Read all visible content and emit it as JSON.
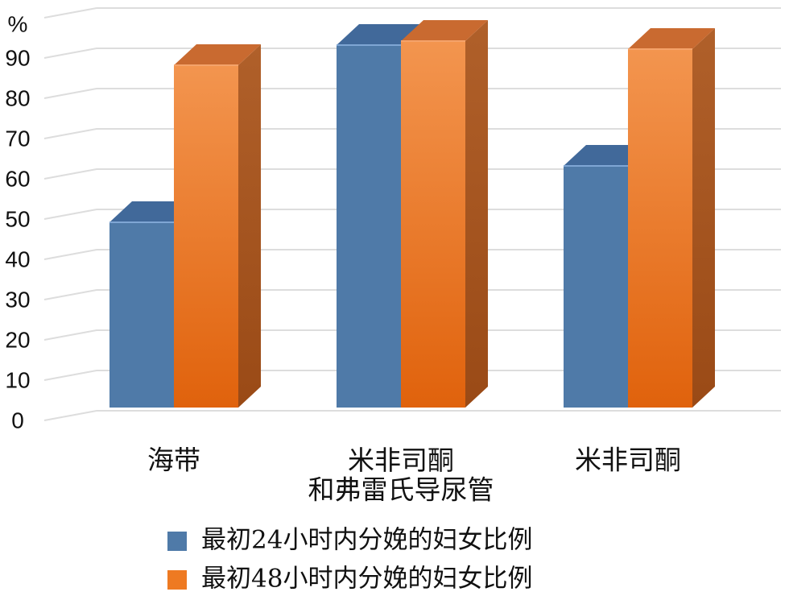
{
  "chart_data": {
    "type": "bar3d",
    "y_label": "%",
    "categories": [
      "海带",
      "米非司酮\n和弗雷氏导尿管",
      "米非司酮"
    ],
    "series": [
      {
        "name": "最初24小时内分娩的妇女比例",
        "color": "#4f7aa8",
        "values": [
          46,
          90,
          60
        ]
      },
      {
        "name": "最初48小时内分娩的妇女比例",
        "color": "#ee7a22",
        "values": [
          85,
          91,
          89
        ]
      }
    ],
    "ylim": [
      0,
      100
    ],
    "yticks": [
      0,
      10,
      20,
      30,
      40,
      50,
      60,
      70,
      80,
      90
    ],
    "grid": true
  }
}
